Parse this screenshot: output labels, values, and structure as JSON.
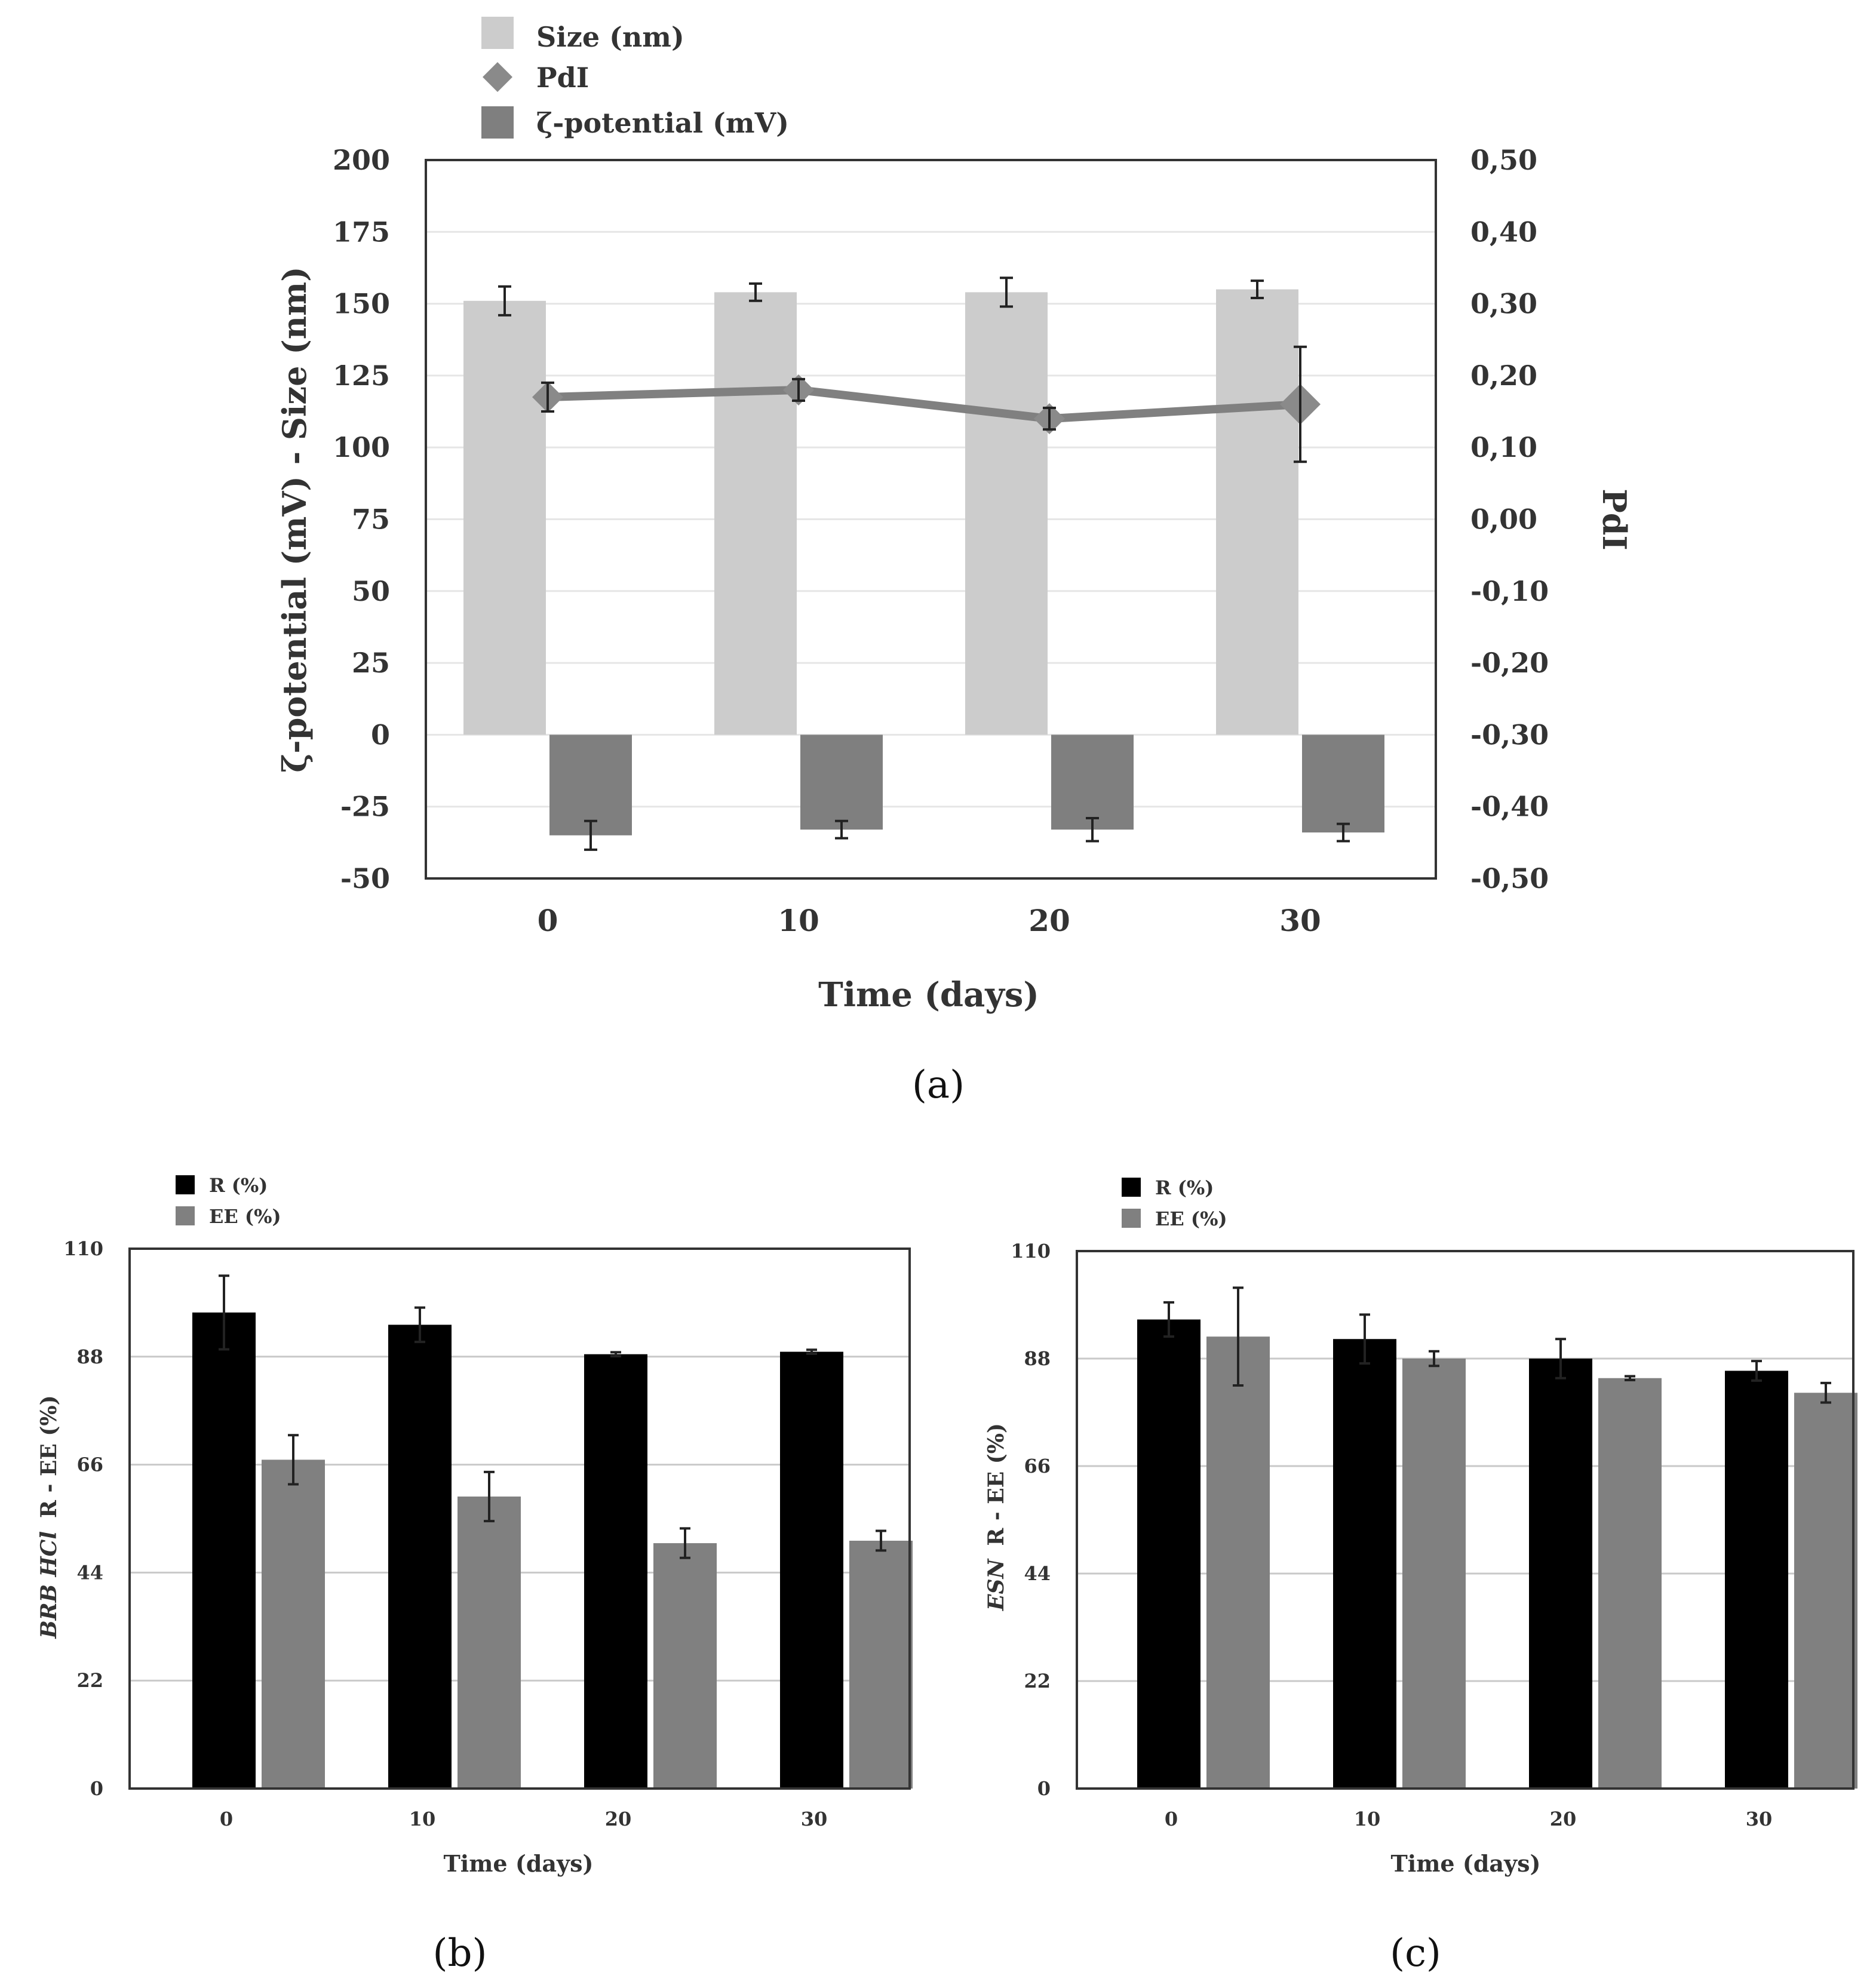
{
  "chart_data": [
    {
      "id": "a",
      "type": "bar",
      "panel_label": "(a)",
      "xlabel": "Time (days)",
      "ylabel_left": "ζ-potential (mV) - Size (nm)",
      "ylabel_right": "PdI",
      "categories": [
        "0",
        "10",
        "20",
        "30"
      ],
      "ylim_left": [
        -50,
        200
      ],
      "yticks_left": [
        "200",
        "175",
        "150",
        "125",
        "100",
        "75",
        "50",
        "25",
        "0",
        "-25",
        "-50"
      ],
      "ylim_right": [
        -0.5,
        0.5
      ],
      "yticks_right": [
        "0,50",
        "0,40",
        "0,30",
        "0,20",
        "0,10",
        "0,00",
        "-0,10",
        "-0,20",
        "-0,30",
        "-0,40",
        "-0,50"
      ],
      "legend": [
        "Size (nm)",
        "PdI",
        "ζ-potential (mV)"
      ],
      "series": [
        {
          "name": "Size (nm)",
          "kind": "bar",
          "axis": "left",
          "color": "#cccccc",
          "values": [
            151,
            154,
            154,
            155
          ],
          "errors": [
            5,
            3,
            5,
            3
          ]
        },
        {
          "name": "ζ-potential (mV)",
          "kind": "bar",
          "axis": "left",
          "color": "#7f7f7f",
          "values": [
            -35,
            -33,
            -33,
            -34
          ],
          "errors": [
            5,
            3,
            4,
            3
          ]
        },
        {
          "name": "PdI",
          "kind": "line",
          "axis": "right",
          "color": "#808080",
          "values": [
            0.17,
            0.18,
            0.14,
            0.16
          ],
          "errors": [
            0.02,
            0.015,
            0.015,
            0.08
          ]
        }
      ]
    },
    {
      "id": "b",
      "type": "bar",
      "panel_label": "(b)",
      "xlabel": "Time (days)",
      "ylabel_italic": "BRB HCl",
      "ylabel": "R - EE (%)",
      "categories": [
        "0",
        "10",
        "20",
        "30"
      ],
      "ylim": [
        0,
        110
      ],
      "yticks": [
        "110",
        "88",
        "66",
        "44",
        "22",
        "0"
      ],
      "legend": [
        "R (%)",
        "EE (%)"
      ],
      "series": [
        {
          "name": "R (%)",
          "color": "#000000",
          "values": [
            97,
            94.5,
            88.5,
            89
          ],
          "errors": [
            7.5,
            3.5,
            0.4,
            0.4
          ]
        },
        {
          "name": "EE (%)",
          "color": "#808080",
          "values": [
            67,
            59.5,
            50,
            50.5
          ],
          "errors": [
            5,
            5,
            3,
            2
          ]
        }
      ]
    },
    {
      "id": "c",
      "type": "bar",
      "panel_label": "(c)",
      "xlabel": "Time (days)",
      "ylabel_italic": "ESN",
      "ylabel": "R - EE (%)",
      "categories": [
        "0",
        "10",
        "20",
        "30"
      ],
      "ylim": [
        0,
        110
      ],
      "yticks": [
        "110",
        "88",
        "66",
        "44",
        "22",
        "0"
      ],
      "legend": [
        "R (%)",
        "EE (%)"
      ],
      "series": [
        {
          "name": "R (%)",
          "color": "#000000",
          "values": [
            96,
            92,
            88,
            85.5
          ],
          "errors": [
            3.5,
            5,
            4,
            2
          ]
        },
        {
          "name": "EE (%)",
          "color": "#808080",
          "values": [
            92.5,
            88,
            84,
            81
          ],
          "errors": [
            10,
            1.5,
            0.4,
            2
          ]
        }
      ]
    }
  ]
}
